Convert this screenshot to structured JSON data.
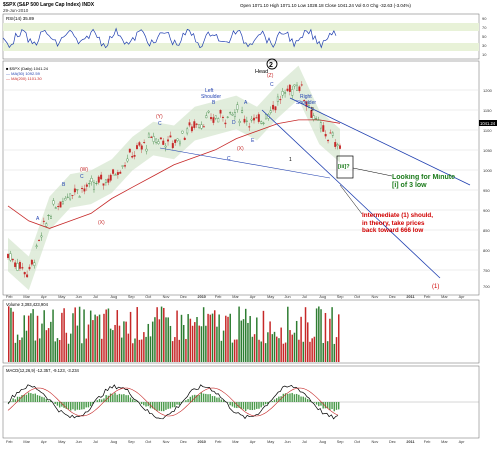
{
  "header": {
    "title": "$SPX (S&P 500 Large Cap Index) INDX",
    "date": "29-Jun-2010",
    "ohlc": "Open 1071.10  High 1071.10  Low 1028.18  Close 1041.24  Vol 0.0  Chg -32.63 (-3.04%)"
  },
  "rsi": {
    "label": "RSI(14) 35.89",
    "ticks": [
      "90",
      "70",
      "50",
      "30",
      "10"
    ]
  },
  "legend": {
    "line1": "■ $SPX (Daily) 1041.24",
    "line2": "— MA(50) 1092.59",
    "line3": "— MA(200) 1101.30"
  },
  "colors": {
    "up": "#2e7d32",
    "down": "#c62828",
    "channel": "#1f3fb0",
    "ma200": "#c62828",
    "ma50": "#1f3fb0",
    "annot_green": "#1a7a1a",
    "annot_red": "#d00000"
  },
  "annotations": {
    "head": "Head",
    "head_wave": "2",
    "head_z": "(Z)",
    "left_shoulder": "Left Shoulder",
    "right_shoulder": "Right Shoulder",
    "wave_y": "(Y)",
    "wave_w": "(W)",
    "wave_x1": "(X)",
    "wave_x2": "(X)",
    "wave_a": "A",
    "wave_b": "B",
    "wave_c": "C",
    "wave_d": "D",
    "wave_e": "E",
    "wave_1": "1",
    "wave_2": "2",
    "wave_iii": "[iii]?",
    "looking": "Looking for Minute [i] of 3 low",
    "intermediate": "Intermediate (1) should, in theory, take prices back toward 666 low",
    "wave_1_paren": "(1)"
  },
  "price_ticks": [
    "1200",
    "1150",
    "1100",
    "1050",
    "1000",
    "950",
    "900",
    "850",
    "800",
    "750",
    "700"
  ],
  "current_price": "1041.24",
  "x_months": [
    "Feb",
    "Mar",
    "Apr",
    "May",
    "Jun",
    "Jul",
    "Aug",
    "Sep",
    "Oct",
    "Nov",
    "Dec",
    "2010",
    "Feb",
    "Mar",
    "Apr",
    "May",
    "Jun",
    "Jul",
    "Aug",
    "Sep",
    "Oct",
    "Nov",
    "Dec",
    "2011",
    "Feb",
    "Mar",
    "Apr"
  ],
  "volume": {
    "label": "Volume 3,393,423,904"
  },
  "macd": {
    "label": "MACD(12,26,9) -12.357, -9.123, -3.234"
  },
  "chart_data": {
    "type": "line",
    "title": "$SPX (S&P 500 Large Cap Index) INDX",
    "x": [
      "2009-02",
      "2009-03",
      "2009-04",
      "2009-05",
      "2009-06",
      "2009-07",
      "2009-08",
      "2009-09",
      "2009-10",
      "2009-11",
      "2009-12",
      "2010-01",
      "2010-02",
      "2010-03",
      "2010-04",
      "2010-05",
      "2010-06"
    ],
    "series": [
      {
        "name": "$SPX (Daily)",
        "values": [
          750,
          700,
          860,
          920,
          930,
          960,
          1020,
          1060,
          1050,
          1100,
          1115,
          1130,
          1100,
          1160,
          1210,
          1090,
          1041
        ]
      },
      {
        "name": "MA(200)",
        "values": [
          880,
          840,
          820,
          840,
          860,
          900,
          930,
          960,
          990,
          1010,
          1030,
          1060,
          1080,
          1100,
          1110,
          1110,
          1101
        ]
      }
    ],
    "ylim": [
      650,
      1230
    ]
  }
}
